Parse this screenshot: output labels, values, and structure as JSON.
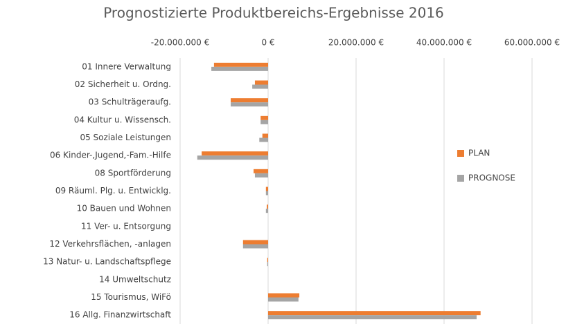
{
  "chart_data": {
    "type": "hbar",
    "title": "Prognostizierte Produktbereichs-Ergebnisse 2016",
    "categories": [
      "01 Innere Verwaltung",
      "02 Sicherheit u. Ordng.",
      "03 Schulträgeraufg.",
      "04 Kultur u. Wissensch.",
      "05 Soziale Leistungen",
      "06 Kinder-,Jugend,-Fam.-Hilfe",
      "08 Sportförderung",
      "09 Räuml. Plg. u. Entwicklg.",
      "10 Bauen und Wohnen",
      "11 Ver- u. Entsorgung",
      "12 Verkehrsflächen, -anlagen",
      "13 Natur- u. Landschaftspflege",
      "14 Umweltschutz",
      "15 Tourismus, WiFö",
      "16 Allg. Finanzwirtschaft"
    ],
    "series": [
      {
        "name": "PLAN",
        "color": "#ed7d31",
        "values": [
          -12300000,
          -3000000,
          -8500000,
          -1700000,
          -1300000,
          -15100000,
          -3300000,
          -500000,
          -300000,
          0,
          -5700000,
          -200000,
          0,
          7100000,
          48300000
        ]
      },
      {
        "name": "PROGNOSE",
        "color": "#a5a5a5",
        "values": [
          -12900000,
          -3600000,
          -8500000,
          -1700000,
          -2000000,
          -16100000,
          -3000000,
          -500000,
          -500000,
          0,
          -5700000,
          -200000,
          0,
          6900000,
          47400000
        ]
      }
    ],
    "xlim": [
      -20000000,
      60000000
    ],
    "xticks": [
      {
        "value": -20000000,
        "label": "-20.000.000 €"
      },
      {
        "value": 0,
        "label": "0 €"
      },
      {
        "value": 20000000,
        "label": "20.000.000 €"
      },
      {
        "value": 40000000,
        "label": "40.000.000 €"
      },
      {
        "value": 60000000,
        "label": "60.000.000 €"
      }
    ],
    "grid": true,
    "legend": "right"
  }
}
